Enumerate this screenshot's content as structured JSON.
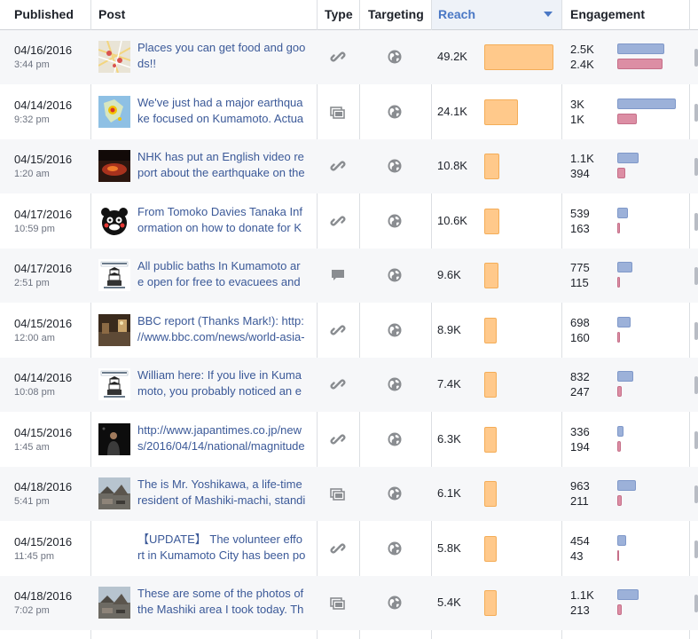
{
  "headers": {
    "published": "Published",
    "post": "Post",
    "type": "Type",
    "targeting": "Targeting",
    "reach": "Reach",
    "engagement": "Engagement"
  },
  "colors": {
    "reach_bar": "#ffc98b",
    "engagement_clicks": "#9cb1d9",
    "engagement_reactions": "#dc8ea4",
    "link_text": "#3b5998",
    "header_active": "#4a78c5"
  },
  "rows": [
    {
      "date": "04/16/2016",
      "time": "3:44 pm",
      "post_line1": "Places you can get food and goo",
      "post_line2": "ds!!",
      "type_icon": "link-icon",
      "reach": "49.2K",
      "reach_fraction": 1.0,
      "eng1": "2.5K",
      "eng2": "2.4K",
      "eng1_fraction": 0.81,
      "eng2_fraction": 0.78,
      "thumb": "map-thumbnail"
    },
    {
      "date": "04/14/2016",
      "time": "9:32 pm",
      "post_line1": "We've just had a major earthqua",
      "post_line2": "ke focused on Kumamoto. Actua",
      "type_icon": "photo-icon",
      "reach": "24.1K",
      "reach_fraction": 0.49,
      "eng1": "3K",
      "eng2": "1K",
      "eng1_fraction": 1.0,
      "eng2_fraction": 0.33,
      "thumb": "earthquake-map-thumbnail"
    },
    {
      "date": "04/15/2016",
      "time": "1:20 am",
      "post_line1": "NHK has put an English video re",
      "post_line2": "port about the earthquake on the",
      "type_icon": "link-icon",
      "reach": "10.8K",
      "reach_fraction": 0.22,
      "eng1": "1.1K",
      "eng2": "394",
      "eng1_fraction": 0.37,
      "eng2_fraction": 0.13,
      "thumb": "fire-thumbnail"
    },
    {
      "date": "04/17/2016",
      "time": "10:59 pm",
      "post_line1": "From Tomoko Davies Tanaka Inf",
      "post_line2": "ormation on how to donate for K",
      "type_icon": "link-icon",
      "reach": "10.6K",
      "reach_fraction": 0.22,
      "eng1": "539",
      "eng2": "163",
      "eng1_fraction": 0.18,
      "eng2_fraction": 0.05,
      "thumb": "kumamon-thumbnail"
    },
    {
      "date": "04/17/2016",
      "time": "2:51 pm",
      "post_line1": "All public baths In Kumamoto ar",
      "post_line2": "e open for free to evacuees and",
      "type_icon": "status-icon",
      "reach": "9.6K",
      "reach_fraction": 0.2,
      "eng1": "775",
      "eng2": "115",
      "eng1_fraction": 0.26,
      "eng2_fraction": 0.04,
      "thumb": "kumamoto-logo-thumbnail"
    },
    {
      "date": "04/15/2016",
      "time": "12:00 am",
      "post_line1": "BBC report (Thanks Mark!): http:",
      "post_line2": "//www.bbc.com/news/world-asia-",
      "type_icon": "link-icon",
      "reach": "8.9K",
      "reach_fraction": 0.18,
      "eng1": "698",
      "eng2": "160",
      "eng1_fraction": 0.23,
      "eng2_fraction": 0.05,
      "thumb": "street-thumbnail"
    },
    {
      "date": "04/14/2016",
      "time": "10:08 pm",
      "post_line1": "William here: If you live in Kuma",
      "post_line2": "moto, you probably noticed an e",
      "type_icon": "link-icon",
      "reach": "7.4K",
      "reach_fraction": 0.15,
      "eng1": "832",
      "eng2": "247",
      "eng1_fraction": 0.28,
      "eng2_fraction": 0.08,
      "thumb": "kumamoto-logo-thumbnail"
    },
    {
      "date": "04/15/2016",
      "time": "1:45 am",
      "post_line1": "http://www.japantimes.co.jp/new",
      "post_line2": "s/2016/04/14/national/magnitude",
      "type_icon": "link-icon",
      "reach": "6.3K",
      "reach_fraction": 0.13,
      "eng1": "336",
      "eng2": "194",
      "eng1_fraction": 0.11,
      "eng2_fraction": 0.06,
      "thumb": "night-person-thumbnail"
    },
    {
      "date": "04/18/2016",
      "time": "5:41 pm",
      "post_line1": "The is Mr. Yoshikawa, a life-time",
      "post_line2": "resident of Mashiki-machi, standi",
      "type_icon": "photo-icon",
      "reach": "6.1K",
      "reach_fraction": 0.12,
      "eng1": "963",
      "eng2": "211",
      "eng1_fraction": 0.32,
      "eng2_fraction": 0.07,
      "thumb": "damage-thumbnail"
    },
    {
      "date": "04/15/2016",
      "time": "11:45 pm",
      "post_line1": "【UPDATE】 The volunteer effo",
      "post_line2": "rt in Kumamoto City has been po",
      "type_icon": "link-icon",
      "reach": "5.8K",
      "reach_fraction": 0.12,
      "eng1": "454",
      "eng2": "43",
      "eng1_fraction": 0.15,
      "eng2_fraction": 0.01,
      "thumb": "none"
    },
    {
      "date": "04/18/2016",
      "time": "7:02 pm",
      "post_line1": "These are some of the photos of",
      "post_line2": "the Mashiki area I took today. Th",
      "type_icon": "photo-icon",
      "reach": "5.4K",
      "reach_fraction": 0.11,
      "eng1": "1.1K",
      "eng2": "213",
      "eng1_fraction": 0.37,
      "eng2_fraction": 0.07,
      "thumb": "damage-thumbnail"
    }
  ]
}
